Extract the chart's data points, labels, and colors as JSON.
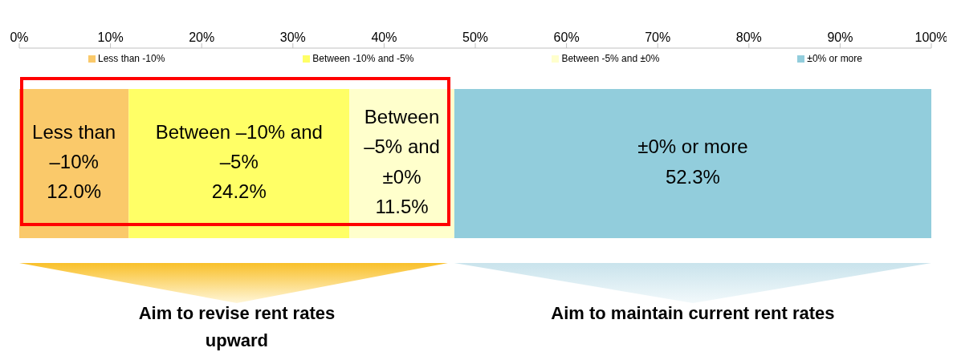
{
  "chart_data": {
    "type": "bar",
    "orientation": "horizontal",
    "stacked": true,
    "categories": [
      null
    ],
    "series": [
      {
        "name": "Less than -10%",
        "color": "#fac96a",
        "values": [
          12.0
        ],
        "value_labels": [
          "Less than –10% 12.0%"
        ]
      },
      {
        "name": "Between -10% and -5%",
        "color": "#ffff66",
        "values": [
          24.2
        ],
        "value_labels": [
          "Between –10% and –5% 24.2%"
        ]
      },
      {
        "name": "Between -5% and ±0%",
        "color": "#ffffcc",
        "values": [
          11.5
        ],
        "value_labels": [
          "Between –5% and ±0% 11.5%"
        ]
      },
      {
        "name": "±0% or more",
        "color": "#92cddc",
        "values": [
          52.3
        ],
        "value_labels": [
          "±0% or more 52.3%"
        ]
      }
    ],
    "xlim": [
      0,
      100
    ],
    "xticks": [
      {
        "value": 0,
        "label": "0%"
      },
      {
        "value": 10,
        "label": "10%"
      },
      {
        "value": 20,
        "label": "20%"
      },
      {
        "value": 30,
        "label": "30%"
      },
      {
        "value": 40,
        "label": "40%"
      },
      {
        "value": 50,
        "label": "50%"
      },
      {
        "value": 60,
        "label": "60%"
      },
      {
        "value": 70,
        "label": "70%"
      },
      {
        "value": 80,
        "label": "80%"
      },
      {
        "value": 90,
        "label": "90%"
      },
      {
        "value": 100,
        "label": "100%"
      }
    ],
    "legend": "top",
    "grid": false,
    "annotations": [
      "Aim to revise rent rates upward",
      "Aim to maintain current rent rates"
    ]
  }
}
